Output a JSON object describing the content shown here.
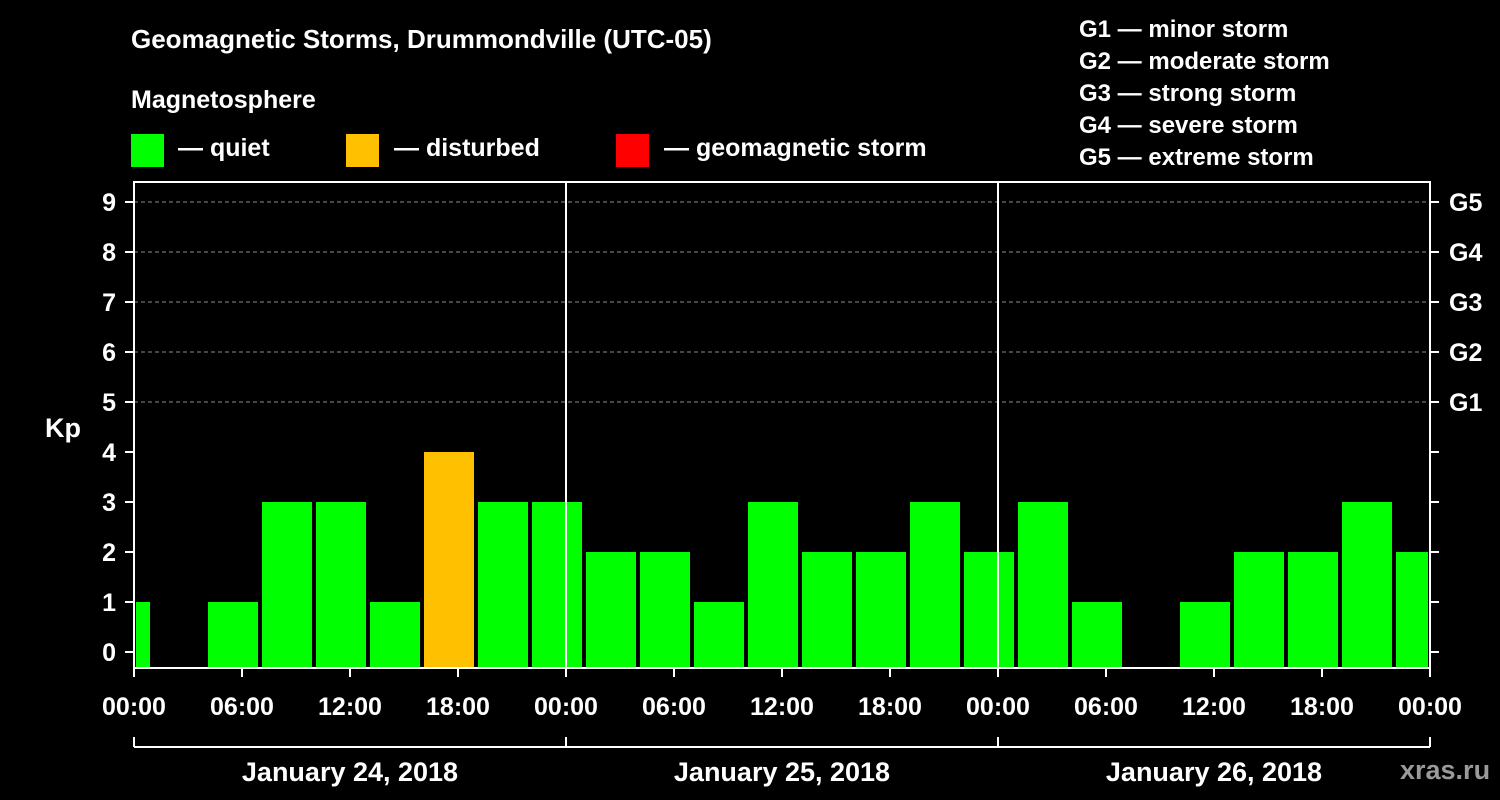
{
  "title": "Geomagnetic Storms, Drummondville (UTC-05)",
  "magnetosphere_label": "Magnetosphere",
  "legend": [
    {
      "label": "— quiet",
      "color": "#00ff00"
    },
    {
      "label": "— disturbed",
      "color": "#ffc000"
    },
    {
      "label": "— geomagnetic storm",
      "color": "#ff0000"
    }
  ],
  "storm_levels": [
    "G1 — minor storm",
    "G2 — moderate storm",
    "G3 — strong storm",
    "G4 — severe storm",
    "G5 — extreme storm"
  ],
  "watermark": "xras.ru",
  "chart_data": {
    "type": "bar",
    "title": "Geomagnetic Storms, Drummondville (UTC-05)",
    "ylabel": "Kp",
    "ylim": [
      0,
      9
    ],
    "yticks": [
      "0",
      "1",
      "2",
      "3",
      "4",
      "5",
      "6",
      "7",
      "8",
      "9"
    ],
    "right_ticks": [
      {
        "kp": 5,
        "label": "G1"
      },
      {
        "kp": 6,
        "label": "G2"
      },
      {
        "kp": 7,
        "label": "G3"
      },
      {
        "kp": 8,
        "label": "G4"
      },
      {
        "kp": 9,
        "label": "G5"
      }
    ],
    "x_range_hours": [
      0,
      72
    ],
    "x_ticks": [
      "00:00",
      "06:00",
      "12:00",
      "18:00",
      "00:00",
      "06:00",
      "12:00",
      "18:00",
      "00:00",
      "06:00",
      "12:00",
      "18:00",
      "00:00"
    ],
    "days": [
      "January 24, 2018",
      "January 25, 2018",
      "January 26, 2018"
    ],
    "bars": [
      {
        "start": 0,
        "end": 1,
        "kp": 1,
        "level": "quiet"
      },
      {
        "start": 4,
        "end": 7,
        "kp": 1,
        "level": "quiet"
      },
      {
        "start": 7,
        "end": 10,
        "kp": 3,
        "level": "quiet"
      },
      {
        "start": 10,
        "end": 13,
        "kp": 3,
        "level": "quiet"
      },
      {
        "start": 13,
        "end": 16,
        "kp": 1,
        "level": "quiet"
      },
      {
        "start": 16,
        "end": 19,
        "kp": 4,
        "level": "disturbed"
      },
      {
        "start": 19,
        "end": 22,
        "kp": 3,
        "level": "quiet"
      },
      {
        "start": 22,
        "end": 25,
        "kp": 3,
        "level": "quiet"
      },
      {
        "start": 25,
        "end": 28,
        "kp": 2,
        "level": "quiet"
      },
      {
        "start": 28,
        "end": 31,
        "kp": 2,
        "level": "quiet"
      },
      {
        "start": 31,
        "end": 34,
        "kp": 1,
        "level": "quiet"
      },
      {
        "start": 34,
        "end": 37,
        "kp": 3,
        "level": "quiet"
      },
      {
        "start": 37,
        "end": 40,
        "kp": 2,
        "level": "quiet"
      },
      {
        "start": 40,
        "end": 43,
        "kp": 2,
        "level": "quiet"
      },
      {
        "start": 43,
        "end": 46,
        "kp": 3,
        "level": "quiet"
      },
      {
        "start": 46,
        "end": 49,
        "kp": 2,
        "level": "quiet"
      },
      {
        "start": 49,
        "end": 52,
        "kp": 3,
        "level": "quiet"
      },
      {
        "start": 52,
        "end": 55,
        "kp": 1,
        "level": "quiet"
      },
      {
        "start": 58,
        "end": 61,
        "kp": 1,
        "level": "quiet"
      },
      {
        "start": 61,
        "end": 64,
        "kp": 2,
        "level": "quiet"
      },
      {
        "start": 64,
        "end": 67,
        "kp": 2,
        "level": "quiet"
      },
      {
        "start": 67,
        "end": 70,
        "kp": 3,
        "level": "quiet"
      },
      {
        "start": 70,
        "end": 72,
        "kp": 2,
        "level": "quiet"
      }
    ],
    "level_colors": {
      "quiet": "#00ff00",
      "disturbed": "#ffc000",
      "storm": "#ff0000"
    }
  }
}
